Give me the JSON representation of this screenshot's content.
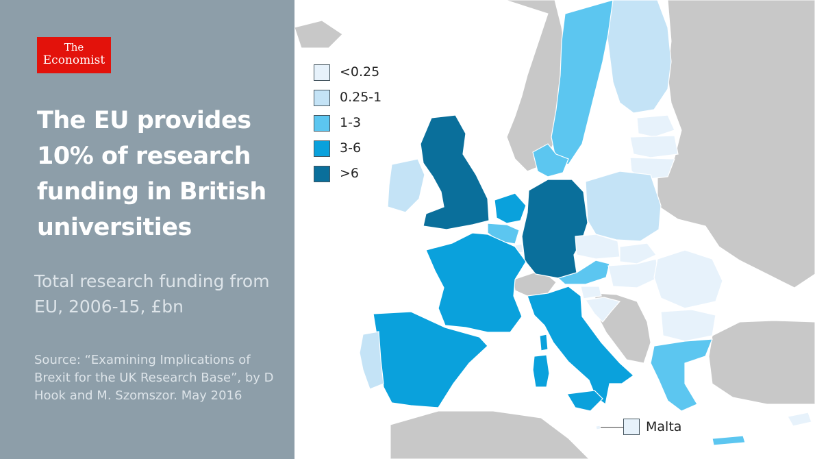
{
  "brand": {
    "logo_line1": "The",
    "logo_line2": "Economist",
    "logo_color": "#e3120b"
  },
  "header": {
    "title": "The EU provides 10% of research funding in British universities",
    "subtitle": "Total research funding from EU, 2006-15, £bn",
    "source": "Source: “Examining Implications of Brexit for the UK Research Base”, by D Hook and M. Szomszor. May 2016"
  },
  "legend": {
    "items": [
      {
        "label": "<0.25",
        "color": "#e7f2fb"
      },
      {
        "label": "0.25-1",
        "color": "#c4e3f6"
      },
      {
        "label": "1-3",
        "color": "#5cc6f0"
      },
      {
        "label": "3-6",
        "color": "#0aa1dc"
      },
      {
        "label": ">6",
        "color": "#0a6f9b"
      }
    ]
  },
  "map": {
    "non_eu_color": "#c8c8c8",
    "sea_color": "#ffffff",
    "callout_label": "Malta",
    "callout_color": "#e7f2fb",
    "countries": [
      {
        "name": "United Kingdom",
        "bin": ">6"
      },
      {
        "name": "Germany",
        "bin": ">6"
      },
      {
        "name": "France",
        "bin": "3-6"
      },
      {
        "name": "Spain",
        "bin": "3-6"
      },
      {
        "name": "Italy",
        "bin": "3-6"
      },
      {
        "name": "Netherlands",
        "bin": "3-6"
      },
      {
        "name": "Sweden",
        "bin": "1-3"
      },
      {
        "name": "Denmark",
        "bin": "1-3"
      },
      {
        "name": "Belgium",
        "bin": "1-3"
      },
      {
        "name": "Austria",
        "bin": "1-3"
      },
      {
        "name": "Greece",
        "bin": "1-3"
      },
      {
        "name": "Ireland",
        "bin": "0.25-1"
      },
      {
        "name": "Portugal",
        "bin": "0.25-1"
      },
      {
        "name": "Finland",
        "bin": "0.25-1"
      },
      {
        "name": "Poland",
        "bin": "0.25-1"
      },
      {
        "name": "Czech Republic",
        "bin": "<0.25"
      },
      {
        "name": "Slovakia",
        "bin": "<0.25"
      },
      {
        "name": "Hungary",
        "bin": "<0.25"
      },
      {
        "name": "Romania",
        "bin": "<0.25"
      },
      {
        "name": "Bulgaria",
        "bin": "<0.25"
      },
      {
        "name": "Slovenia",
        "bin": "<0.25"
      },
      {
        "name": "Croatia",
        "bin": "<0.25"
      },
      {
        "name": "Estonia",
        "bin": "<0.25"
      },
      {
        "name": "Latvia",
        "bin": "<0.25"
      },
      {
        "name": "Lithuania",
        "bin": "<0.25"
      },
      {
        "name": "Luxembourg",
        "bin": "<0.25"
      },
      {
        "name": "Cyprus",
        "bin": "<0.25"
      },
      {
        "name": "Malta",
        "bin": "<0.25"
      }
    ]
  }
}
